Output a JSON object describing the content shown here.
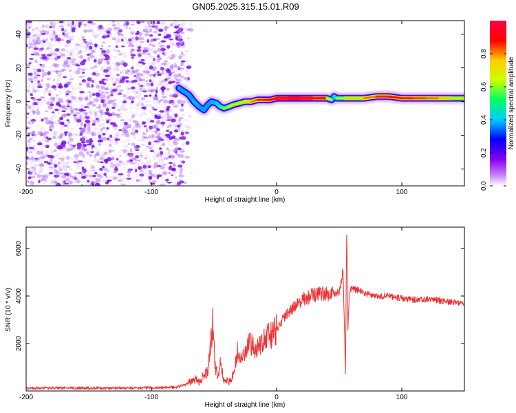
{
  "title": "GN05.2025.315.15.01.R09",
  "chart_data": [
    {
      "type": "heatmap",
      "title": "GN05.2025.315.15.01.R09",
      "xlabel": "Height of straight line (km)",
      "ylabel": "Frequency (Hz)",
      "xlim": [
        -200,
        150
      ],
      "ylim": [
        -50,
        48
      ],
      "x_ticks": [
        -200,
        -100,
        0,
        100
      ],
      "y_ticks": [
        -40,
        -20,
        0,
        20,
        40
      ],
      "grid": false,
      "colorbar": {
        "label": "Normalized spectral amplitude",
        "range": [
          0,
          1
        ],
        "ticks": [
          0.0,
          0.2,
          0.4,
          0.6,
          0.8
        ],
        "colormap": [
          "#ffffff",
          "#cc88ff",
          "#7700ee",
          "#0000ff",
          "#00ccff",
          "#00ff66",
          "#ccff00",
          "#ffcc00",
          "#ff0000",
          "#ff0044"
        ]
      },
      "noise_region": {
        "x_range": [
          -200,
          -74
        ],
        "y_range": [
          -50,
          48
        ],
        "amplitude_range": [
          0.0,
          0.3
        ]
      },
      "ridge": {
        "x": [
          -78,
          -74,
          -70,
          -66,
          -62,
          -58,
          -55,
          -52,
          -48,
          -45,
          -42,
          -38,
          -35,
          -30,
          -25,
          -20,
          -15,
          -10,
          -5,
          0,
          10,
          20,
          30,
          40,
          44,
          46,
          48,
          55,
          70,
          80,
          90,
          100,
          110,
          120,
          130,
          140,
          150
        ],
        "frequency": [
          8,
          6,
          4,
          0,
          -3,
          -5,
          -2,
          0,
          -1,
          -3,
          -4,
          -3,
          -2,
          -1,
          0,
          0,
          1,
          1,
          1,
          2,
          2,
          2,
          2,
          2,
          1,
          3,
          2,
          2,
          2,
          3,
          3,
          2,
          2,
          2,
          2,
          2,
          2
        ],
        "amplitude": [
          0.35,
          0.5,
          0.5,
          0.55,
          0.55,
          0.5,
          0.5,
          0.55,
          0.55,
          0.6,
          0.6,
          0.65,
          0.7,
          0.7,
          0.75,
          0.8,
          0.85,
          0.9,
          0.9,
          0.95,
          1.0,
          1.0,
          0.95,
          0.9,
          0.5,
          0.55,
          0.6,
          0.7,
          0.8,
          0.85,
          0.9,
          0.9,
          0.85,
          0.85,
          0.8,
          0.75,
          0.7
        ]
      }
    },
    {
      "type": "line",
      "xlabel": "Height of straight line (km)",
      "ylabel": "SNR (10 * v/v)",
      "xlim": [
        -200,
        150
      ],
      "ylim": [
        0,
        6900
      ],
      "x_ticks": [
        -200,
        -100,
        0,
        100
      ],
      "y_ticks": [
        2000,
        4000,
        6000
      ],
      "grid": false,
      "color": "#ee3333",
      "series": [
        {
          "x": [
            -200,
            -150,
            -100,
            -80,
            -72,
            -66,
            -62,
            -58,
            -55,
            -53,
            -51,
            -49,
            -47,
            -45,
            -42,
            -38,
            -34,
            -31,
            -29,
            -26,
            -22,
            -18,
            -14,
            -10,
            -5,
            0,
            5,
            10,
            15,
            20,
            25,
            30,
            35,
            40,
            45,
            50,
            52,
            53,
            54,
            55,
            56,
            57,
            58,
            60,
            65,
            70,
            80,
            90,
            100,
            110,
            120,
            130,
            140,
            150
          ],
          "y": [
            120,
            120,
            130,
            160,
            280,
            500,
            400,
            650,
            800,
            1700,
            2800,
            1000,
            650,
            1100,
            500,
            350,
            800,
            1700,
            1300,
            1500,
            2000,
            1800,
            1900,
            2250,
            2300,
            2600,
            3000,
            3300,
            3600,
            3800,
            3950,
            4050,
            4100,
            4100,
            4100,
            4150,
            4700,
            5100,
            3200,
            700,
            6800,
            2500,
            4100,
            4300,
            4250,
            4100,
            4000,
            4000,
            3900,
            3850,
            3850,
            3800,
            3750,
            3700
          ]
        }
      ]
    }
  ]
}
